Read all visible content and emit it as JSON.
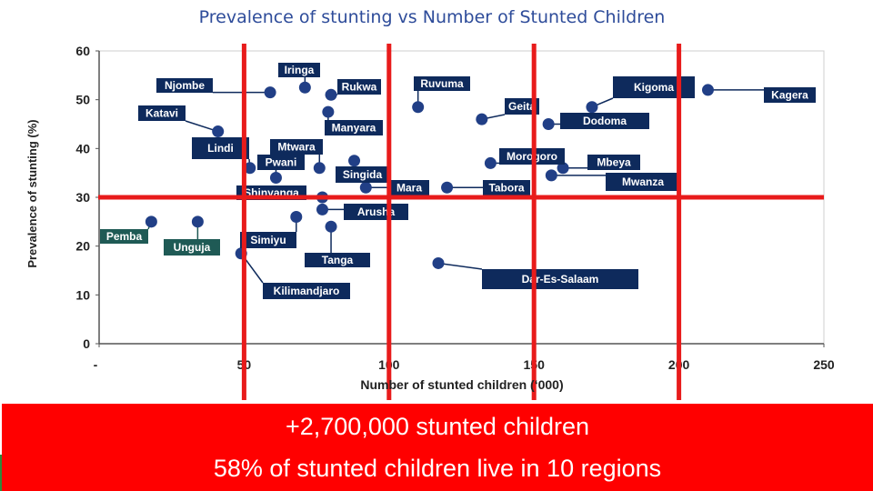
{
  "title": "Prevalence of stunting vs Number of Stunted Children",
  "colors": {
    "title": "#2e4c9a",
    "label_box": "#0e2a5c",
    "label_box_highlight": "#1f5a55",
    "threshold_line": "#e81b1b",
    "banner": "#ff0000",
    "point": "#213f86"
  },
  "chart_data": {
    "type": "scatter",
    "title": "",
    "xlabel": "Number of stunted children (‘000)",
    "ylabel": "Prevalence of stunting (%)",
    "xlim": [
      0,
      250
    ],
    "ylim": [
      0,
      60
    ],
    "x_tick_labels": [
      "-",
      "50",
      "100",
      "150",
      "200",
      "250"
    ],
    "y_tick_labels": [
      "0",
      "10",
      "20",
      "30",
      "40",
      "50",
      "60"
    ],
    "x_ticks": [
      0,
      50,
      100,
      150,
      200,
      250
    ],
    "y_ticks": [
      0,
      10,
      20,
      30,
      40,
      50,
      60
    ],
    "grid": false,
    "reference_lines": {
      "x": [
        50,
        100,
        150,
        200
      ],
      "y": [
        30
      ]
    },
    "points": [
      {
        "label": "Njombe",
        "x": 59,
        "y": 51.5
      },
      {
        "label": "Iringa",
        "x": 71,
        "y": 52.5
      },
      {
        "label": "Rukwa",
        "x": 80,
        "y": 51
      },
      {
        "label": "Ruvuma",
        "x": 110,
        "y": 48.5
      },
      {
        "label": "Geita",
        "x": 132,
        "y": 46
      },
      {
        "label": "Kigoma",
        "x": 170,
        "y": 48.5
      },
      {
        "label": "Kagera",
        "x": 210,
        "y": 52
      },
      {
        "label": "Katavi",
        "x": 41,
        "y": 43.5
      },
      {
        "label": "Manyara",
        "x": 79,
        "y": 47.5
      },
      {
        "label": "Dodoma",
        "x": 155,
        "y": 45
      },
      {
        "label": "Lindi",
        "x": 52,
        "y": 36
      },
      {
        "label": "Mtwara",
        "x": 76,
        "y": 36
      },
      {
        "label": "Pwani",
        "x": 61,
        "y": 34
      },
      {
        "label": "Singida",
        "x": 88,
        "y": 37.5
      },
      {
        "label": "Morogoro",
        "x": 135,
        "y": 37
      },
      {
        "label": "Mbeya",
        "x": 160,
        "y": 36
      },
      {
        "label": "Mwanza",
        "x": 156,
        "y": 34.5
      },
      {
        "label": "Mara",
        "x": 92,
        "y": 32
      },
      {
        "label": "Tabora",
        "x": 120,
        "y": 32
      },
      {
        "label": "Shinyanga",
        "x": 77,
        "y": 30
      },
      {
        "label": "Arusha",
        "x": 77,
        "y": 27.5
      },
      {
        "label": "Pemba",
        "x": 18,
        "y": 25
      },
      {
        "label": "Unguja",
        "x": 34,
        "y": 25
      },
      {
        "label": "Simiyu",
        "x": 68,
        "y": 26
      },
      {
        "label": "Tanga",
        "x": 80,
        "y": 24
      },
      {
        "label": "Kilimandjaro",
        "x": 49,
        "y": 18.5
      },
      {
        "label": "Dar-Es-Salaam",
        "x": 117,
        "y": 16.5
      }
    ]
  },
  "banner": {
    "line1": "+2,700,000 stunted children",
    "line2": "58% of stunted children live in 10 regions"
  }
}
